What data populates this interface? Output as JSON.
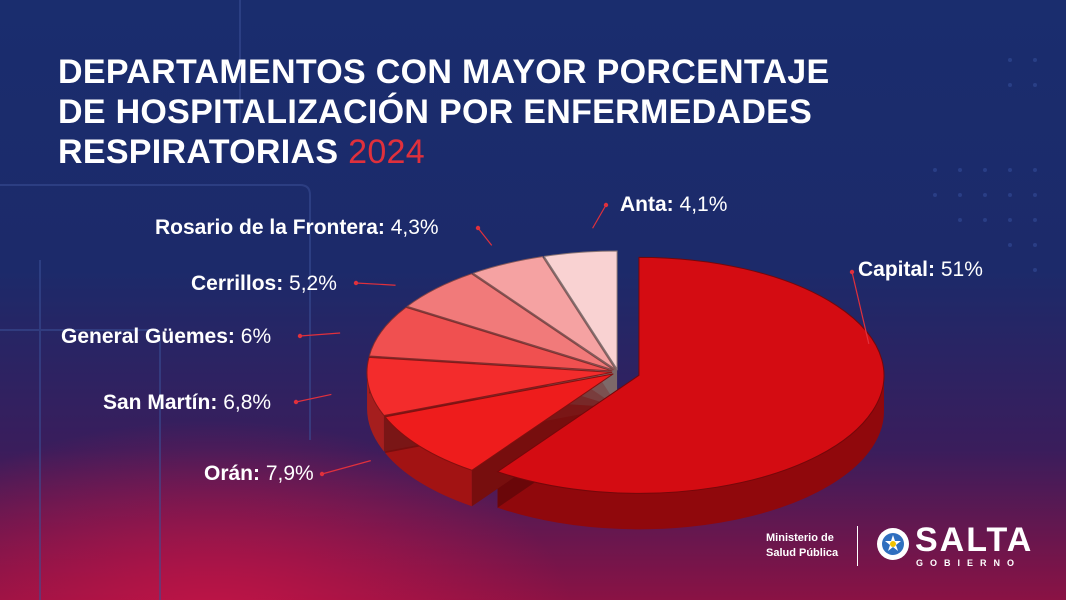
{
  "title": {
    "line1": "DEPARTAMENTOS CON MAYOR PORCENTAJE",
    "line2": "DE HOSPITALIZACIÓN POR ENFERMEDADES",
    "line3": "RESPIRATORIAS",
    "year": "2024"
  },
  "chart_data": {
    "type": "pie",
    "title": "DEPARTAMENTOS CON MAYOR PORCENTAJE DE HOSPITALIZACIÓN POR ENFERMEDADES RESPIRATORIAS 2024",
    "unit": "%",
    "slices": [
      {
        "name": "Capital",
        "value": 51,
        "display": "51%",
        "color": "#d40c12"
      },
      {
        "name": "Orán",
        "value": 7.9,
        "display": "7,9%",
        "color": "#ee1c1c"
      },
      {
        "name": "San Martín",
        "value": 6.8,
        "display": "6,8%",
        "color": "#f32c2c"
      },
      {
        "name": "General Güemes",
        "value": 6,
        "display": "6%",
        "color": "#f05050"
      },
      {
        "name": "Cerrillos",
        "value": 5.2,
        "display": "5,2%",
        "color": "#f17a7a"
      },
      {
        "name": "Rosario de la Frontera",
        "value": 4.3,
        "display": "4,3%",
        "color": "#f5a2a2"
      },
      {
        "name": "Anta",
        "value": 4.1,
        "display": "4,1%",
        "color": "#f9d2d2"
      }
    ],
    "leader_color": "#e0303c"
  },
  "footer": {
    "ministry_line1": "Ministerio de",
    "ministry_line2": "Salud Pública",
    "logo_text": "SALTA",
    "logo_sub": "GOBIERNO"
  }
}
